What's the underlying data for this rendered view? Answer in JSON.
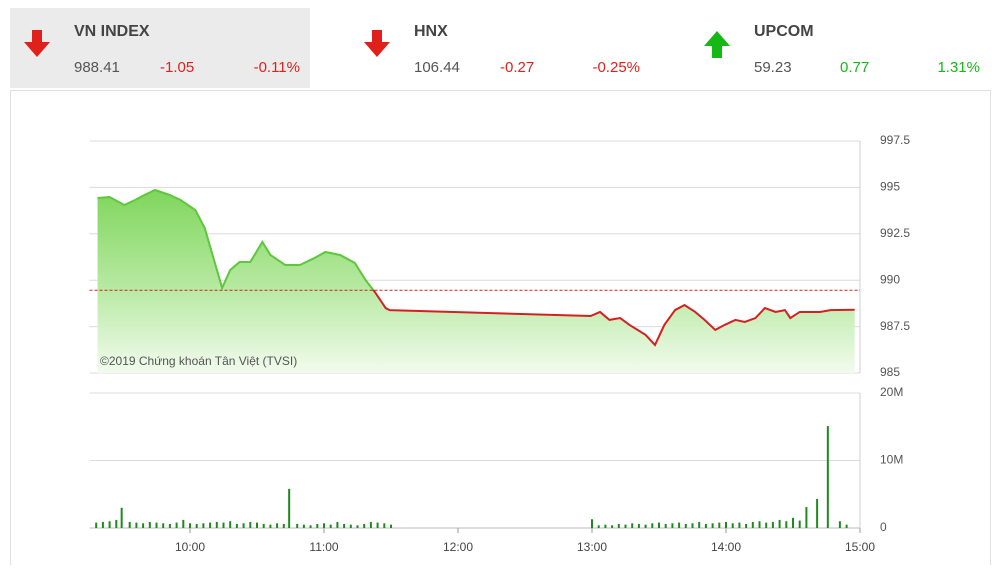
{
  "indices": [
    {
      "name": "VN INDEX",
      "value": "988.41",
      "change": "-1.05",
      "change_pct": "-0.11%"
    },
    {
      "name": "HNX",
      "value": "106.44",
      "change": "-0.27",
      "change_pct": "-0.25%"
    },
    {
      "name": "UPCOM",
      "value": "59.23",
      "change": "0.77",
      "change_pct": "1.31%"
    }
  ],
  "chart_data": [
    {
      "type": "area",
      "annotation": "©2019 Chứng khoán Tân Việt (TVSI)",
      "reference": 989.46,
      "xlim": [
        9.25,
        15
      ],
      "ylim": [
        985,
        997.5
      ],
      "yticks": [
        985,
        987.5,
        990,
        992.5,
        995,
        997.5
      ],
      "grid": true,
      "color": "#5cc83a",
      "below_color": "#d42020",
      "x": [
        9.31,
        9.4,
        9.51,
        9.59,
        9.66,
        9.74,
        9.85,
        9.93,
        10.04,
        10.11,
        10.19,
        10.24,
        10.3,
        10.37,
        10.45,
        10.54,
        10.6,
        10.71,
        10.82,
        10.93,
        11.01,
        11.12,
        11.23,
        11.31,
        11.38,
        11.46,
        11.49,
        12.99,
        13.06,
        13.13,
        13.21,
        13.28,
        13.4,
        13.47,
        13.54,
        13.62,
        13.69,
        13.77,
        13.84,
        13.92,
        13.99,
        14.07,
        14.14,
        14.22,
        14.29,
        14.37,
        14.44,
        14.48,
        14.55,
        14.7,
        14.78,
        14.96
      ],
      "values": [
        994.43,
        994.48,
        994.05,
        994.32,
        994.59,
        994.86,
        994.59,
        994.32,
        993.78,
        992.81,
        990.82,
        989.58,
        990.55,
        990.98,
        990.98,
        992.06,
        991.36,
        990.82,
        990.82,
        991.2,
        991.52,
        991.36,
        990.93,
        990.01,
        989.36,
        988.5,
        988.39,
        988.07,
        988.29,
        987.86,
        987.96,
        987.59,
        987.05,
        986.51,
        987.59,
        988.39,
        988.66,
        988.29,
        987.86,
        987.32,
        987.59,
        987.86,
        987.75,
        987.96,
        988.5,
        988.29,
        988.39,
        987.96,
        988.29,
        988.29,
        988.39,
        988.41
      ]
    },
    {
      "type": "bar",
      "color": "#1e8a1e",
      "xlim": [
        9.25,
        15
      ],
      "xticks": [
        {
          "value": 10,
          "label": "10:00"
        },
        {
          "value": 11,
          "label": "11:00"
        },
        {
          "value": 12,
          "label": "12:00"
        },
        {
          "value": 13,
          "label": "13:00"
        },
        {
          "value": 14,
          "label": "14:00"
        },
        {
          "value": 15,
          "label": "15:00"
        }
      ],
      "ylim": [
        0,
        20000000
      ],
      "yticks": [
        0,
        {
          "value": 10000000,
          "label": "10M"
        },
        {
          "value": 20000000,
          "label": "20M"
        }
      ],
      "grid": true,
      "x": [
        9.3,
        9.35,
        9.4,
        9.45,
        9.49,
        9.55,
        9.6,
        9.65,
        9.7,
        9.75,
        9.8,
        9.85,
        9.9,
        9.95,
        10,
        10.05,
        10.1,
        10.15,
        10.2,
        10.25,
        10.3,
        10.35,
        10.4,
        10.45,
        10.5,
        10.55,
        10.6,
        10.65,
        10.7,
        10.74,
        10.8,
        10.85,
        10.9,
        10.95,
        11,
        11.05,
        11.1,
        11.15,
        11.2,
        11.25,
        11.3,
        11.35,
        11.4,
        11.45,
        11.5,
        13,
        13.05,
        13.1,
        13.15,
        13.2,
        13.25,
        13.3,
        13.35,
        13.4,
        13.45,
        13.5,
        13.55,
        13.6,
        13.65,
        13.7,
        13.75,
        13.8,
        13.85,
        13.9,
        13.95,
        14,
        14.05,
        14.1,
        14.15,
        14.2,
        14.25,
        14.3,
        14.35,
        14.4,
        14.45,
        14.5,
        14.55,
        14.6,
        14.68,
        14.76,
        14.85,
        14.9
      ],
      "values": [
        800000,
        900000,
        1000000,
        1200000,
        3000000,
        900000,
        800000,
        700000,
        900000,
        800000,
        700000,
        600000,
        800000,
        1200000,
        700000,
        600000,
        700000,
        800000,
        900000,
        800000,
        1000000,
        600000,
        700000,
        900000,
        800000,
        600000,
        500000,
        700000,
        600000,
        5800000,
        600000,
        500000,
        400000,
        600000,
        700000,
        500000,
        900000,
        600000,
        500000,
        400000,
        600000,
        900000,
        800000,
        700000,
        500000,
        1300000,
        400000,
        500000,
        400000,
        600000,
        500000,
        700000,
        600000,
        500000,
        700000,
        800000,
        600000,
        700000,
        800000,
        600000,
        700000,
        900000,
        600000,
        700000,
        800000,
        900000,
        700000,
        800000,
        600000,
        900000,
        1000000,
        800000,
        900000,
        1200000,
        1000000,
        1500000,
        1100000,
        3100000,
        4300000,
        15100000,
        1000000,
        500000
      ]
    }
  ]
}
